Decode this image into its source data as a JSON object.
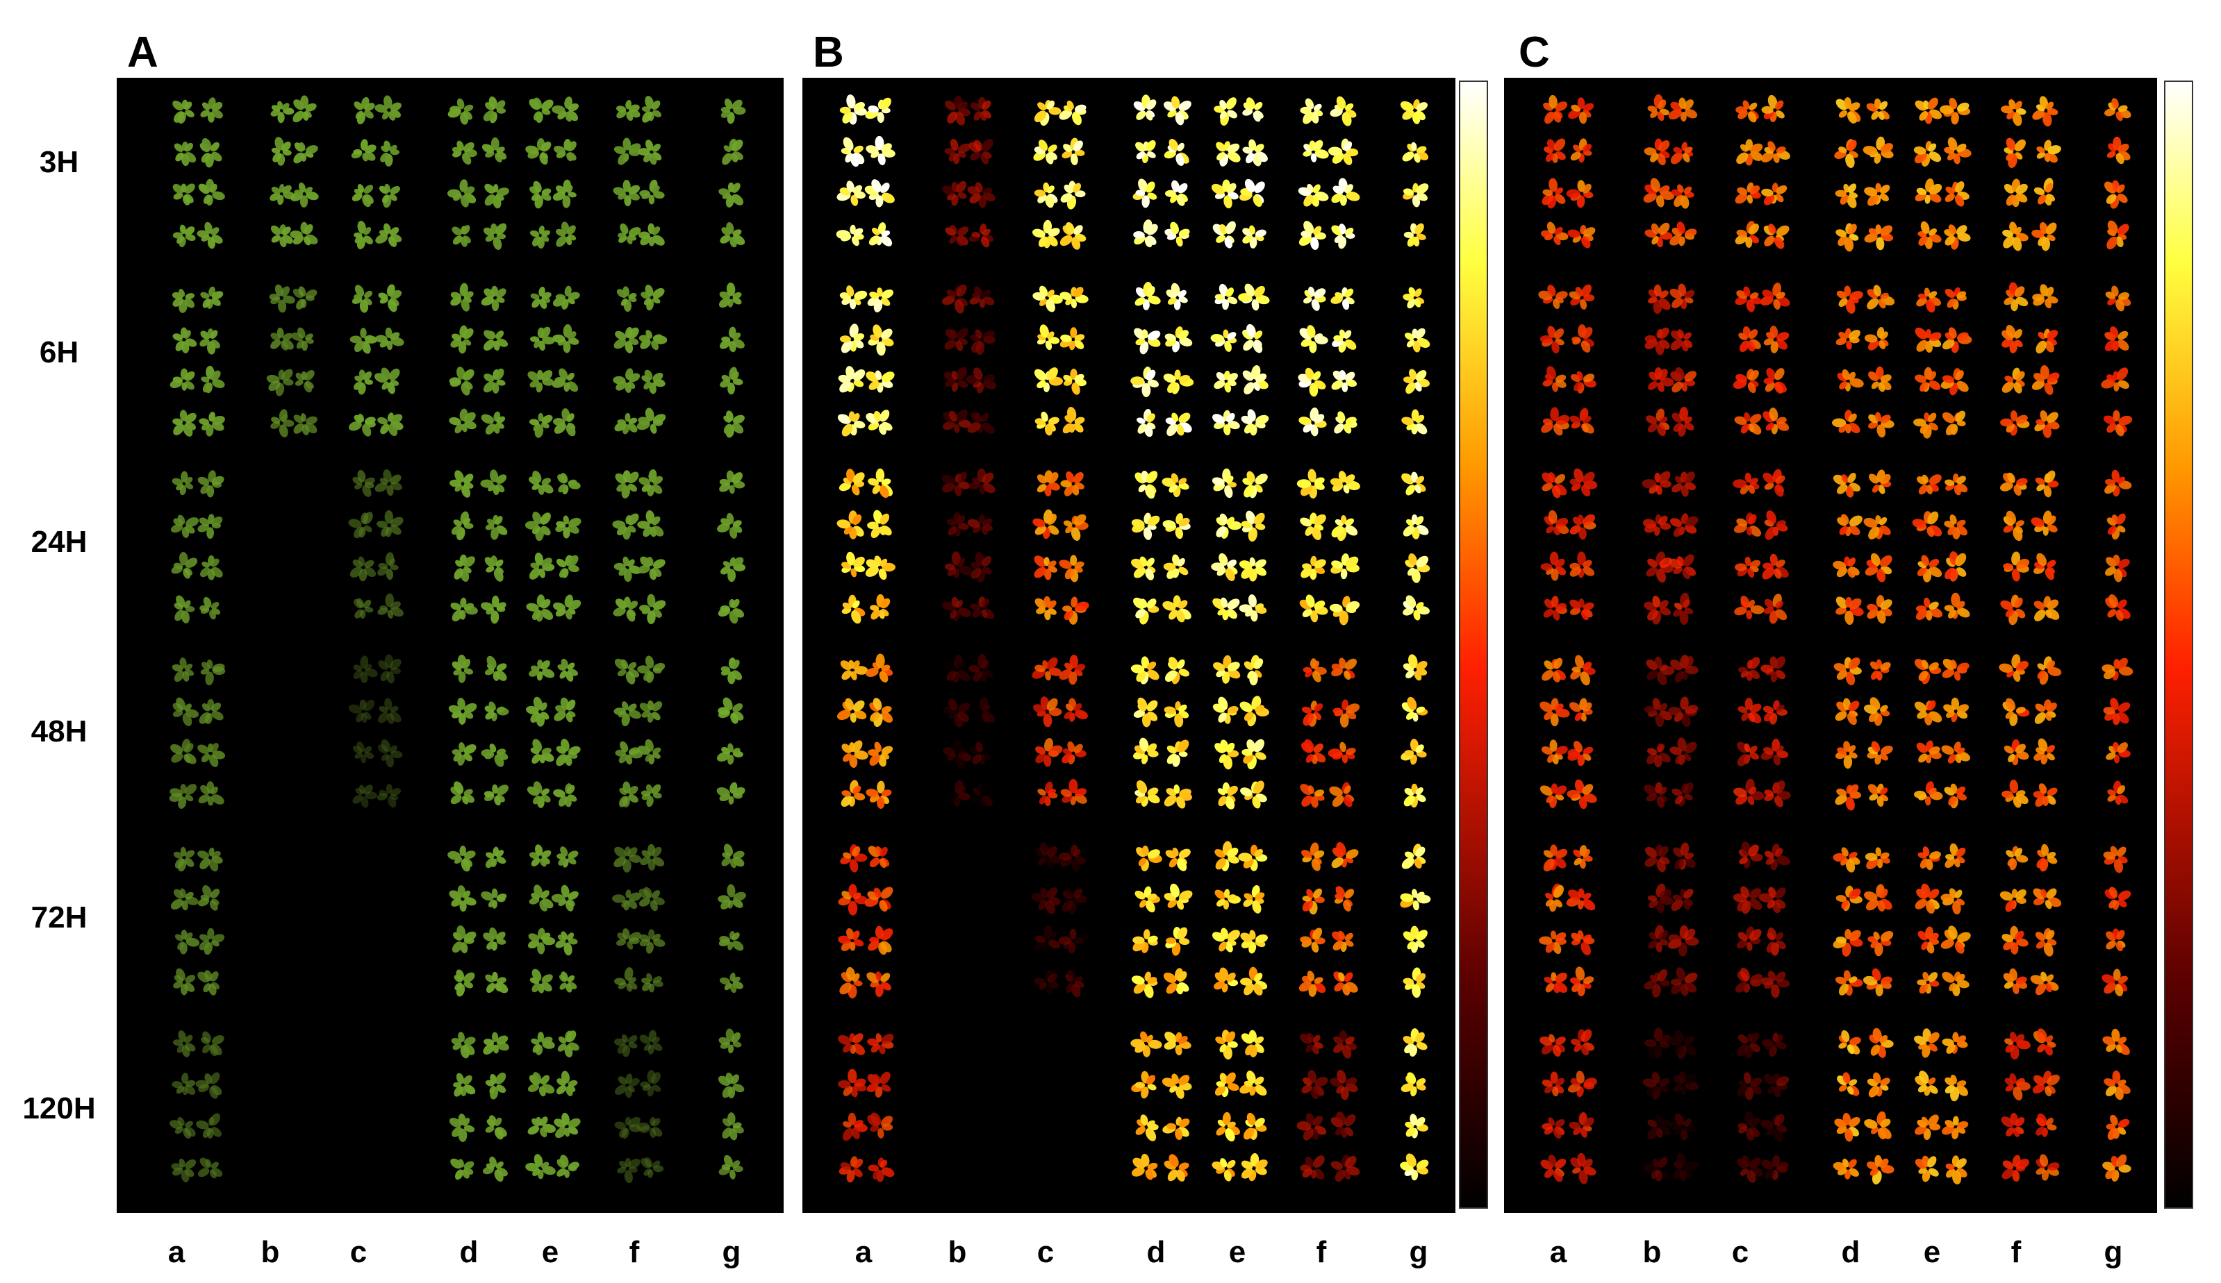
{
  "panels": [
    {
      "letter": "A",
      "mode": "rgb"
    },
    {
      "letter": "B",
      "mode": "heat"
    },
    {
      "letter": "C",
      "mode": "heat"
    }
  ],
  "time_points": [
    "3H",
    "6H",
    "24H",
    "48H",
    "72H",
    "120H"
  ],
  "groups": [
    "a",
    "b",
    "c",
    "d",
    "e",
    "f",
    "g"
  ],
  "colors": {
    "background": "#000000",
    "plant_green": "#6b8f2e",
    "heat_low": "#000000",
    "heat_mid": "#ff2000",
    "heat_high": "#ffff40",
    "heat_top": "#ffffff"
  },
  "intensity": {
    "A": [
      [
        0.9,
        0.9,
        0.9,
        0.9,
        0.9,
        0.9,
        0.9
      ],
      [
        0.9,
        0.7,
        0.9,
        0.9,
        0.9,
        0.9,
        0.9
      ],
      [
        0.8,
        0.0,
        0.5,
        0.9,
        0.9,
        0.9,
        0.9
      ],
      [
        0.7,
        0.0,
        0.25,
        0.9,
        0.9,
        0.8,
        0.9
      ],
      [
        0.7,
        0.0,
        0.0,
        0.9,
        0.9,
        0.6,
        0.8
      ],
      [
        0.5,
        0.0,
        0.0,
        0.9,
        0.9,
        0.35,
        0.8
      ]
    ],
    "B": [
      [
        0.9,
        0.3,
        0.85,
        0.9,
        0.9,
        0.9,
        0.85
      ],
      [
        0.85,
        0.25,
        0.8,
        0.9,
        0.9,
        0.9,
        0.85
      ],
      [
        0.75,
        0.25,
        0.6,
        0.85,
        0.85,
        0.8,
        0.85
      ],
      [
        0.65,
        0.12,
        0.5,
        0.8,
        0.8,
        0.55,
        0.8
      ],
      [
        0.55,
        0.0,
        0.15,
        0.75,
        0.75,
        0.6,
        0.8
      ],
      [
        0.45,
        0.0,
        0.0,
        0.7,
        0.75,
        0.3,
        0.85
      ]
    ],
    "C": [
      [
        0.55,
        0.55,
        0.6,
        0.65,
        0.65,
        0.65,
        0.6
      ],
      [
        0.5,
        0.45,
        0.55,
        0.6,
        0.6,
        0.6,
        0.55
      ],
      [
        0.5,
        0.4,
        0.5,
        0.6,
        0.6,
        0.6,
        0.55
      ],
      [
        0.55,
        0.3,
        0.4,
        0.6,
        0.6,
        0.6,
        0.55
      ],
      [
        0.55,
        0.3,
        0.35,
        0.6,
        0.6,
        0.6,
        0.55
      ],
      [
        0.45,
        0.15,
        0.2,
        0.65,
        0.65,
        0.5,
        0.6
      ]
    ]
  }
}
